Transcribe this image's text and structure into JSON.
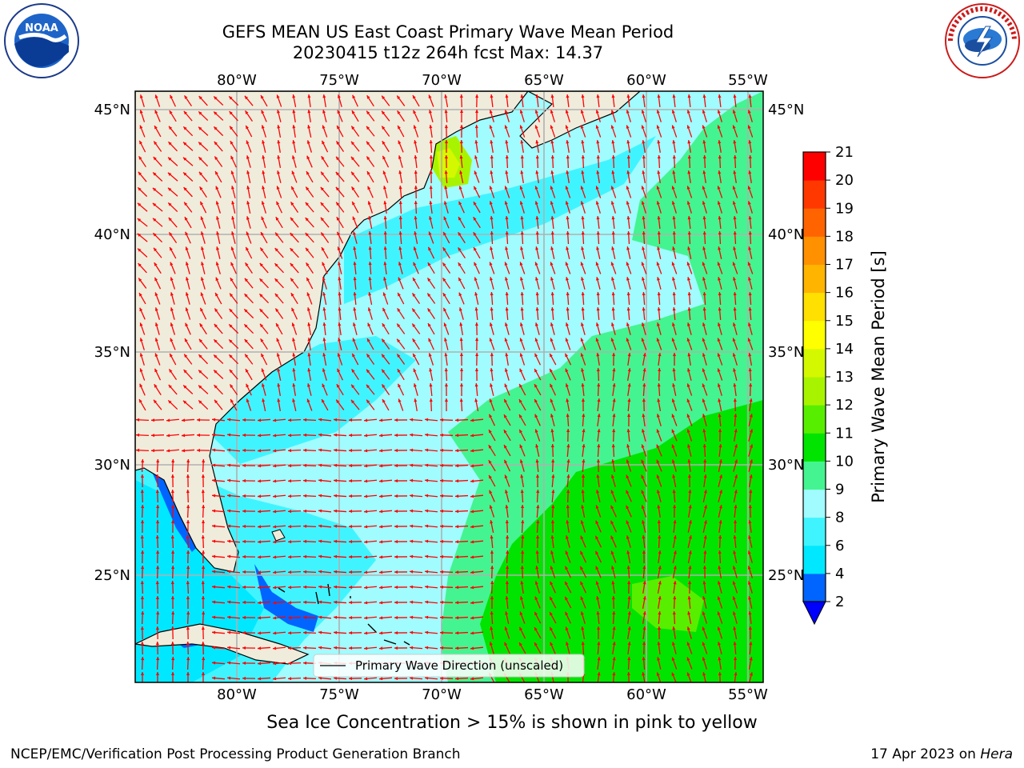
{
  "title": {
    "line1": "GEFS MEAN US East Coast Primary Wave Mean Period",
    "line2": "20230415 t12z 264h fcst   Max: 14.37"
  },
  "logos": {
    "left": {
      "icon": "noaa-logo",
      "text": "NOAA",
      "ring": "NATIONAL OCEANIC AND ATMOSPHERIC ADMINISTRATION · U.S. DEPARTMENT OF COMMERCE"
    },
    "right": {
      "icon": "nws-logo",
      "ring": "NATIONAL WEATHER SERVICE"
    }
  },
  "map": {
    "lon_labels": [
      "80°W",
      "75°W",
      "70°W",
      "65°W",
      "60°W",
      "55°W"
    ],
    "lat_labels": [
      "45°N",
      "40°N",
      "35°N",
      "30°N",
      "25°N"
    ],
    "legend_label": "Primary Wave Direction (unscaled)",
    "arrow_color": "#ff0000",
    "land_color": "#efecdc",
    "grid_color": "#b0b0b0"
  },
  "colorbar": {
    "label": "Primary Wave Mean Period [s]",
    "ticks": [
      "2",
      "4",
      "6",
      "8",
      "9",
      "10",
      "11",
      "12",
      "13",
      "14",
      "15",
      "16",
      "17",
      "18",
      "19",
      "20",
      "21"
    ],
    "colors": [
      "#0064ff",
      "#00e8ff",
      "#40f4ff",
      "#a0fcff",
      "#44f490",
      "#00e400",
      "#58ee00",
      "#a8f400",
      "#d4f800",
      "#ffff00",
      "#ffe000",
      "#ffb400",
      "#ff9000",
      "#ff6400",
      "#ff3800",
      "#ff0000"
    ],
    "extend_color": "#0000ff"
  },
  "note": "Sea Ice Concentration > 15% is shown in pink to yellow",
  "footer": {
    "left": "NCEP/EMC/Verification Post Processing Product Generation Branch",
    "date": "17 Apr 2023 on ",
    "host": "Hera"
  }
}
